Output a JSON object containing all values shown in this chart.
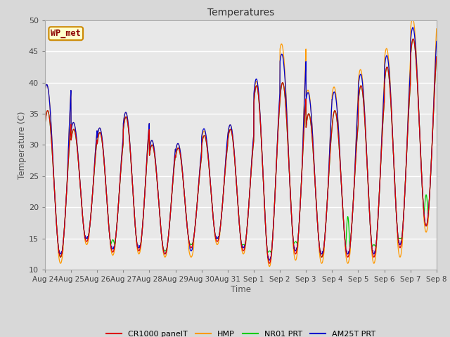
{
  "title": "Temperatures",
  "ylabel": "Temperature (C)",
  "xlabel": "Time",
  "ylim": [
    10,
    50
  ],
  "fig_bg_color": "#d8d8d8",
  "plot_bg_color": "#e8e8e8",
  "station_label": "WP_met",
  "x_tick_labels": [
    "Aug 24",
    "Aug 25",
    "Aug 26",
    "Aug 27",
    "Aug 28",
    "Aug 29",
    "Aug 30",
    "Aug 31",
    "Sep 1",
    "Sep 2",
    "Sep 3",
    "Sep 4",
    "Sep 5",
    "Sep 6",
    "Sep 7",
    "Sep 8"
  ],
  "series": [
    {
      "label": "CR1000 panelT",
      "color": "#dd0000"
    },
    {
      "label": "HMP",
      "color": "#ff9900"
    },
    {
      "label": "NR01 PRT",
      "color": "#00cc00"
    },
    {
      "label": "AM25T PRT",
      "color": "#0000cc"
    }
  ],
  "num_days": 15,
  "samples_per_day": 144,
  "day_mins": [
    12.0,
    14.5,
    12.8,
    13.0,
    12.5,
    13.5,
    14.5,
    13.0,
    11.0,
    12.5,
    12.0,
    12.0,
    12.0,
    13.5,
    17.0
  ],
  "day_maxs": [
    35.5,
    32.5,
    32.0,
    34.5,
    30.0,
    29.5,
    31.5,
    32.5,
    39.5,
    40.0,
    35.0,
    35.5,
    39.5,
    42.5,
    47.0
  ],
  "hmp_min_offsets": [
    5.5,
    1.5,
    1.0,
    1.0,
    1.0,
    1.0,
    1.0,
    1.0,
    1.0,
    8.0,
    5.0,
    5.0,
    3.5,
    4.0,
    4.5
  ],
  "hmp_max_offsets": [
    -1.0,
    -0.5,
    -0.5,
    -0.5,
    -0.5,
    -1.5,
    -0.5,
    -0.5,
    -0.5,
    -1.0,
    -1.0,
    -1.0,
    -1.0,
    -1.5,
    -1.0
  ],
  "nr01_max_offsets": [
    0.0,
    0.5,
    2.0,
    0.5,
    0.5,
    0.5,
    0.5,
    1.0,
    2.0,
    2.0,
    0.0,
    6.5,
    2.0,
    1.5,
    5.0
  ],
  "am25t_min_offsets": [
    5.5,
    1.5,
    1.0,
    1.0,
    1.0,
    1.0,
    1.5,
    1.0,
    1.5,
    6.0,
    4.5,
    4.0,
    2.5,
    2.5,
    2.5
  ],
  "am25t_max_offsets": [
    0.5,
    0.5,
    0.5,
    0.5,
    0.0,
    -0.5,
    0.5,
    0.5,
    0.5,
    0.5,
    0.5,
    0.5,
    0.5,
    0.5,
    0.0
  ]
}
